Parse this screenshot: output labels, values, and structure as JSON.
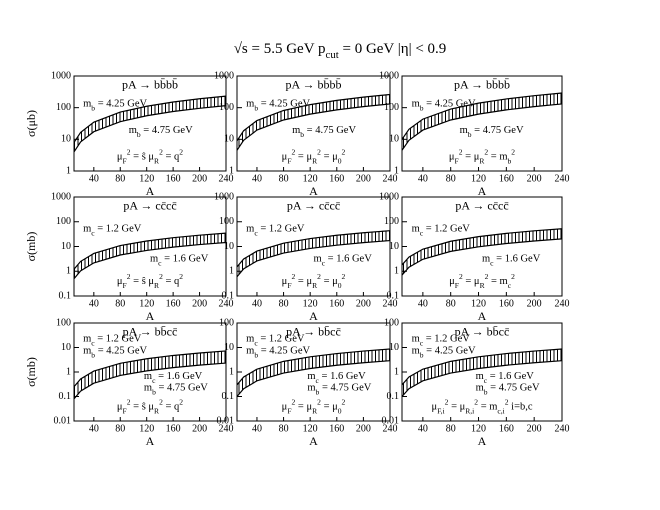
{
  "figure_title": [
    {
      "t": "√s = 5.5 GeV    p"
    },
    {
      "sub": "cut"
    },
    {
      "t": " = 0 GeV     |η| < 0.9"
    }
  ],
  "chart_data": [
    {
      "type": "line",
      "process": "pA → bb̄bb̄",
      "ylabel": "σ(μb)",
      "xlabel": "A",
      "log_y": true,
      "band": "hatched",
      "xlim": [
        10,
        240
      ],
      "xticks": [
        40,
        80,
        120,
        160,
        200,
        240
      ],
      "ylim": [
        1,
        1000
      ],
      "yticks": [
        1,
        10,
        100,
        1000
      ],
      "x": [
        10,
        20,
        40,
        80,
        120,
        160,
        200,
        240
      ],
      "series": [
        {
          "color": "#000000",
          "values": [
            8,
            16.6,
            34.8,
            72.5,
            111,
            151,
            191,
            232
          ]
        },
        {
          "color": "#000000",
          "values": [
            4,
            8.32,
            17.4,
            36.2,
            55.6,
            75.6,
            95.6,
            116
          ]
        }
      ],
      "annotations": [
        [
          {
            "t": "m"
          },
          {
            "sub": "b"
          },
          {
            "t": " = 4.25 GeV"
          }
        ],
        [
          {
            "t": "m"
          },
          {
            "sub": "b"
          },
          {
            "t": " = 4.75 GeV"
          }
        ]
      ],
      "scale": [
        {
          "t": "μ"
        },
        {
          "sub": "F"
        },
        {
          "sup": "2"
        },
        {
          "t": " = ŝ    μ"
        },
        {
          "sub": "R"
        },
        {
          "sup": "2"
        },
        {
          "t": " = q"
        },
        {
          "sup": "2"
        }
      ]
    },
    {
      "type": "line",
      "process": "pA → bb̄bb̄",
      "xlabel": "A",
      "log_y": true,
      "band": "hatched",
      "xlim": [
        10,
        240
      ],
      "xticks": [
        40,
        80,
        120,
        160,
        200,
        240
      ],
      "ylim": [
        1,
        1000
      ],
      "yticks": [
        1,
        10,
        100,
        1000
      ],
      "x": [
        10,
        20,
        40,
        80,
        120,
        160,
        200,
        240
      ],
      "series": [
        {
          "color": "#000000",
          "values": [
            9,
            18.7,
            39.2,
            81.5,
            125,
            170,
            215,
            261
          ]
        },
        {
          "color": "#000000",
          "values": [
            4.5,
            9.36,
            19.6,
            40.8,
            62.6,
            85.1,
            108,
            131
          ]
        }
      ],
      "annotations": [
        [
          {
            "t": "m"
          },
          {
            "sub": "b"
          },
          {
            "t": " = 4.25 GeV"
          }
        ],
        [
          {
            "t": "m"
          },
          {
            "sub": "b"
          },
          {
            "t": " = 4.75 GeV"
          }
        ]
      ],
      "scale": [
        {
          "t": "μ"
        },
        {
          "sub": "F"
        },
        {
          "sup": "2"
        },
        {
          "t": " = μ"
        },
        {
          "sub": "R"
        },
        {
          "sup": "2"
        },
        {
          "t": " = μ"
        },
        {
          "sub": "0"
        },
        {
          "sup": "2"
        }
      ]
    },
    {
      "type": "line",
      "process": "pA → bb̄bb̄",
      "xlabel": "A",
      "log_y": true,
      "band": "hatched",
      "xlim": [
        10,
        240
      ],
      "xticks": [
        40,
        80,
        120,
        160,
        200,
        240
      ],
      "ylim": [
        1,
        1000
      ],
      "yticks": [
        1,
        10,
        100,
        1000
      ],
      "x": [
        10,
        20,
        40,
        80,
        120,
        160,
        200,
        240
      ],
      "series": [
        {
          "color": "#000000",
          "values": [
            10,
            20.8,
            43.5,
            90.6,
            139,
            189,
            239,
            290
          ]
        },
        {
          "color": "#000000",
          "values": [
            4.5,
            9.36,
            19.6,
            40.8,
            62.6,
            85.1,
            108,
            131
          ]
        }
      ],
      "annotations": [
        [
          {
            "t": "m"
          },
          {
            "sub": "b"
          },
          {
            "t": " = 4.25 GeV"
          }
        ],
        [
          {
            "t": "m"
          },
          {
            "sub": "b"
          },
          {
            "t": " = 4.75 GeV"
          }
        ]
      ],
      "scale": [
        {
          "t": "μ"
        },
        {
          "sub": "F"
        },
        {
          "sup": "2"
        },
        {
          "t": " = μ"
        },
        {
          "sub": "R"
        },
        {
          "sup": "2"
        },
        {
          "t": " = m"
        },
        {
          "sub": "b"
        },
        {
          "sup": "2"
        }
      ]
    },
    {
      "type": "line",
      "process": "pA → cc̄cc̄",
      "ylabel": "σ(mb)",
      "xlabel": "A",
      "log_y": true,
      "band": "hatched",
      "xlim": [
        10,
        240
      ],
      "xticks": [
        40,
        80,
        120,
        160,
        200,
        240
      ],
      "ylim": [
        0.1,
        1000
      ],
      "yticks": [
        0.1,
        1,
        10,
        100,
        1000
      ],
      "x": [
        10,
        20,
        40,
        80,
        120,
        160,
        200,
        240
      ],
      "series": [
        {
          "color": "#000000",
          "values": [
            1.2,
            2.5,
            5.22,
            10.9,
            16.7,
            22.7,
            28.7,
            34.8
          ]
        },
        {
          "color": "#000000",
          "values": [
            0.5,
            1.04,
            2.18,
            4.53,
            6.95,
            9.45,
            12,
            14.5
          ]
        }
      ],
      "annotations": [
        [
          {
            "t": "m"
          },
          {
            "sub": "c"
          },
          {
            "t": " = 1.2 GeV"
          }
        ],
        [
          {
            "t": "m"
          },
          {
            "sub": "c"
          },
          {
            "t": " = 1.6 GeV"
          }
        ]
      ],
      "scale": [
        {
          "t": "μ"
        },
        {
          "sub": "F"
        },
        {
          "sup": "2"
        },
        {
          "t": " = ŝ    μ"
        },
        {
          "sub": "R"
        },
        {
          "sup": "2"
        },
        {
          "t": " = q"
        },
        {
          "sup": "2"
        }
      ]
    },
    {
      "type": "line",
      "process": "pA → cc̄cc̄",
      "xlabel": "A",
      "log_y": true,
      "band": "hatched",
      "xlim": [
        10,
        240
      ],
      "xticks": [
        40,
        80,
        120,
        160,
        200,
        240
      ],
      "ylim": [
        0.1,
        1000
      ],
      "yticks": [
        0.1,
        1,
        10,
        100,
        1000
      ],
      "x": [
        10,
        20,
        40,
        80,
        120,
        160,
        200,
        240
      ],
      "series": [
        {
          "color": "#000000",
          "values": [
            1.5,
            3.12,
            6.53,
            13.6,
            20.9,
            28.4,
            35.9,
            43.5
          ]
        },
        {
          "color": "#000000",
          "values": [
            0.6,
            1.25,
            2.61,
            5.44,
            8.34,
            11.3,
            14.3,
            17.4
          ]
        }
      ],
      "annotations": [
        [
          {
            "t": "m"
          },
          {
            "sub": "c"
          },
          {
            "t": " = 1.2 GeV"
          }
        ],
        [
          {
            "t": "m"
          },
          {
            "sub": "c"
          },
          {
            "t": " = 1.6 GeV"
          }
        ]
      ],
      "scale": [
        {
          "t": "μ"
        },
        {
          "sub": "F"
        },
        {
          "sup": "2"
        },
        {
          "t": " = μ"
        },
        {
          "sub": "R"
        },
        {
          "sup": "2"
        },
        {
          "t": " = μ"
        },
        {
          "sub": "0"
        },
        {
          "sup": "2"
        }
      ]
    },
    {
      "type": "line",
      "process": "pA → cc̄cc̄",
      "xlabel": "A",
      "log_y": true,
      "band": "hatched",
      "xlim": [
        10,
        240
      ],
      "xticks": [
        40,
        80,
        120,
        160,
        200,
        240
      ],
      "ylim": [
        0.1,
        1000
      ],
      "yticks": [
        0.1,
        1,
        10,
        100,
        1000
      ],
      "x": [
        10,
        20,
        40,
        80,
        120,
        160,
        200,
        240
      ],
      "series": [
        {
          "color": "#000000",
          "values": [
            1.8,
            3.74,
            7.83,
            16.3,
            25,
            34,
            43,
            52.2
          ]
        },
        {
          "color": "#000000",
          "values": [
            0.7,
            1.46,
            3.05,
            6.34,
            9.73,
            13.2,
            16.7,
            20.3
          ]
        }
      ],
      "annotations": [
        [
          {
            "t": "m"
          },
          {
            "sub": "c"
          },
          {
            "t": " = 1.2 GeV"
          }
        ],
        [
          {
            "t": "m"
          },
          {
            "sub": "c"
          },
          {
            "t": " = 1.6 GeV"
          }
        ]
      ],
      "scale": [
        {
          "t": "μ"
        },
        {
          "sub": "F"
        },
        {
          "sup": "2"
        },
        {
          "t": " = μ"
        },
        {
          "sub": "R"
        },
        {
          "sup": "2"
        },
        {
          "t": " = m"
        },
        {
          "sub": "c"
        },
        {
          "sup": "2"
        }
      ]
    },
    {
      "type": "line",
      "process": "pA → bb̄cc̄",
      "ylabel": "σ(mb)",
      "xlabel": "A",
      "log_y": true,
      "band": "hatched",
      "xlim": [
        10,
        240
      ],
      "xticks": [
        40,
        80,
        120,
        160,
        200,
        240
      ],
      "ylim": [
        0.01,
        100
      ],
      "yticks": [
        0.01,
        0.1,
        1,
        10,
        100
      ],
      "x": [
        10,
        20,
        40,
        80,
        120,
        160,
        200,
        240
      ],
      "series": [
        {
          "color": "#000000",
          "values": [
            0.25,
            0.52,
            1.09,
            2.27,
            3.48,
            4.73,
            5.98,
            7.25
          ]
        },
        {
          "color": "#000000",
          "values": [
            0.08,
            0.166,
            0.348,
            0.725,
            1.11,
            1.51,
            1.91,
            2.32
          ]
        }
      ],
      "annotations": [
        [
          {
            "t": "m"
          },
          {
            "sub": "c"
          },
          {
            "t": " = 1.2 GeV"
          }
        ],
        [
          {
            "t": "m"
          },
          {
            "sub": "b"
          },
          {
            "t": " = 4.25 GeV"
          }
        ],
        [
          {
            "t": "m"
          },
          {
            "sub": "c"
          },
          {
            "t": " = 1.6 GeV"
          }
        ],
        [
          {
            "t": "m"
          },
          {
            "sub": "b"
          },
          {
            "t": " = 4.75 GeV"
          }
        ]
      ],
      "scale": [
        {
          "t": "μ"
        },
        {
          "sub": "F"
        },
        {
          "sup": "2"
        },
        {
          "t": " = ŝ    μ"
        },
        {
          "sub": "R"
        },
        {
          "sup": "2"
        },
        {
          "t": " = q"
        },
        {
          "sup": "2"
        }
      ]
    },
    {
      "type": "line",
      "process": "pA → bb̄cc̄",
      "xlabel": "A",
      "log_y": true,
      "band": "hatched",
      "xlim": [
        10,
        240
      ],
      "xticks": [
        40,
        80,
        120,
        160,
        200,
        240
      ],
      "ylim": [
        0.01,
        100
      ],
      "yticks": [
        0.01,
        0.1,
        1,
        10,
        100
      ],
      "x": [
        10,
        20,
        40,
        80,
        120,
        160,
        200,
        240
      ],
      "series": [
        {
          "color": "#000000",
          "values": [
            0.3,
            0.624,
            1.31,
            2.72,
            4.17,
            5.67,
            7.17,
            8.7
          ]
        },
        {
          "color": "#000000",
          "values": [
            0.1,
            0.208,
            0.435,
            0.906,
            1.39,
            1.89,
            2.39,
            2.9
          ]
        }
      ],
      "annotations": [
        [
          {
            "t": "m"
          },
          {
            "sub": "c"
          },
          {
            "t": " = 1.2 GeV"
          }
        ],
        [
          {
            "t": "m"
          },
          {
            "sub": "b"
          },
          {
            "t": " = 4.25 GeV"
          }
        ],
        [
          {
            "t": "m"
          },
          {
            "sub": "c"
          },
          {
            "t": " = 1.6 GeV"
          }
        ],
        [
          {
            "t": "m"
          },
          {
            "sub": "b"
          },
          {
            "t": " = 4.75 GeV"
          }
        ]
      ],
      "scale": [
        {
          "t": "μ"
        },
        {
          "sub": "F"
        },
        {
          "sup": "2"
        },
        {
          "t": " = μ"
        },
        {
          "sub": "R"
        },
        {
          "sup": "2"
        },
        {
          "t": " = μ"
        },
        {
          "sub": "0"
        },
        {
          "sup": "2"
        }
      ]
    },
    {
      "type": "line",
      "process": "pA → bb̄cc̄",
      "xlabel": "A",
      "log_y": true,
      "band": "hatched",
      "xlim": [
        10,
        240
      ],
      "xticks": [
        40,
        80,
        120,
        160,
        200,
        240
      ],
      "ylim": [
        0.01,
        100
      ],
      "yticks": [
        0.01,
        0.1,
        1,
        10,
        100
      ],
      "x": [
        10,
        20,
        40,
        80,
        120,
        160,
        200,
        240
      ],
      "series": [
        {
          "color": "#000000",
          "values": [
            0.3,
            0.624,
            1.31,
            2.72,
            4.17,
            5.67,
            7.17,
            8.7
          ]
        },
        {
          "color": "#000000",
          "values": [
            0.1,
            0.208,
            0.435,
            0.906,
            1.39,
            1.89,
            2.39,
            2.9
          ]
        }
      ],
      "annotations": [
        [
          {
            "t": "m"
          },
          {
            "sub": "c"
          },
          {
            "t": " = 1.2 GeV"
          }
        ],
        [
          {
            "t": "m"
          },
          {
            "sub": "b"
          },
          {
            "t": " = 4.25 GeV"
          }
        ],
        [
          {
            "t": "m"
          },
          {
            "sub": "c"
          },
          {
            "t": " = 1.6 GeV"
          }
        ],
        [
          {
            "t": "m"
          },
          {
            "sub": "b"
          },
          {
            "t": " = 4.75 GeV"
          }
        ]
      ],
      "scale": [
        {
          "t": "μ"
        },
        {
          "sub": "F,i"
        },
        {
          "sup": "2"
        },
        {
          "t": " = μ"
        },
        {
          "sub": "R,i"
        },
        {
          "sup": "2"
        },
        {
          "t": " = m"
        },
        {
          "sub": "c,i"
        },
        {
          "sup": "2"
        },
        {
          "t": "  i=b,c"
        }
      ]
    }
  ]
}
